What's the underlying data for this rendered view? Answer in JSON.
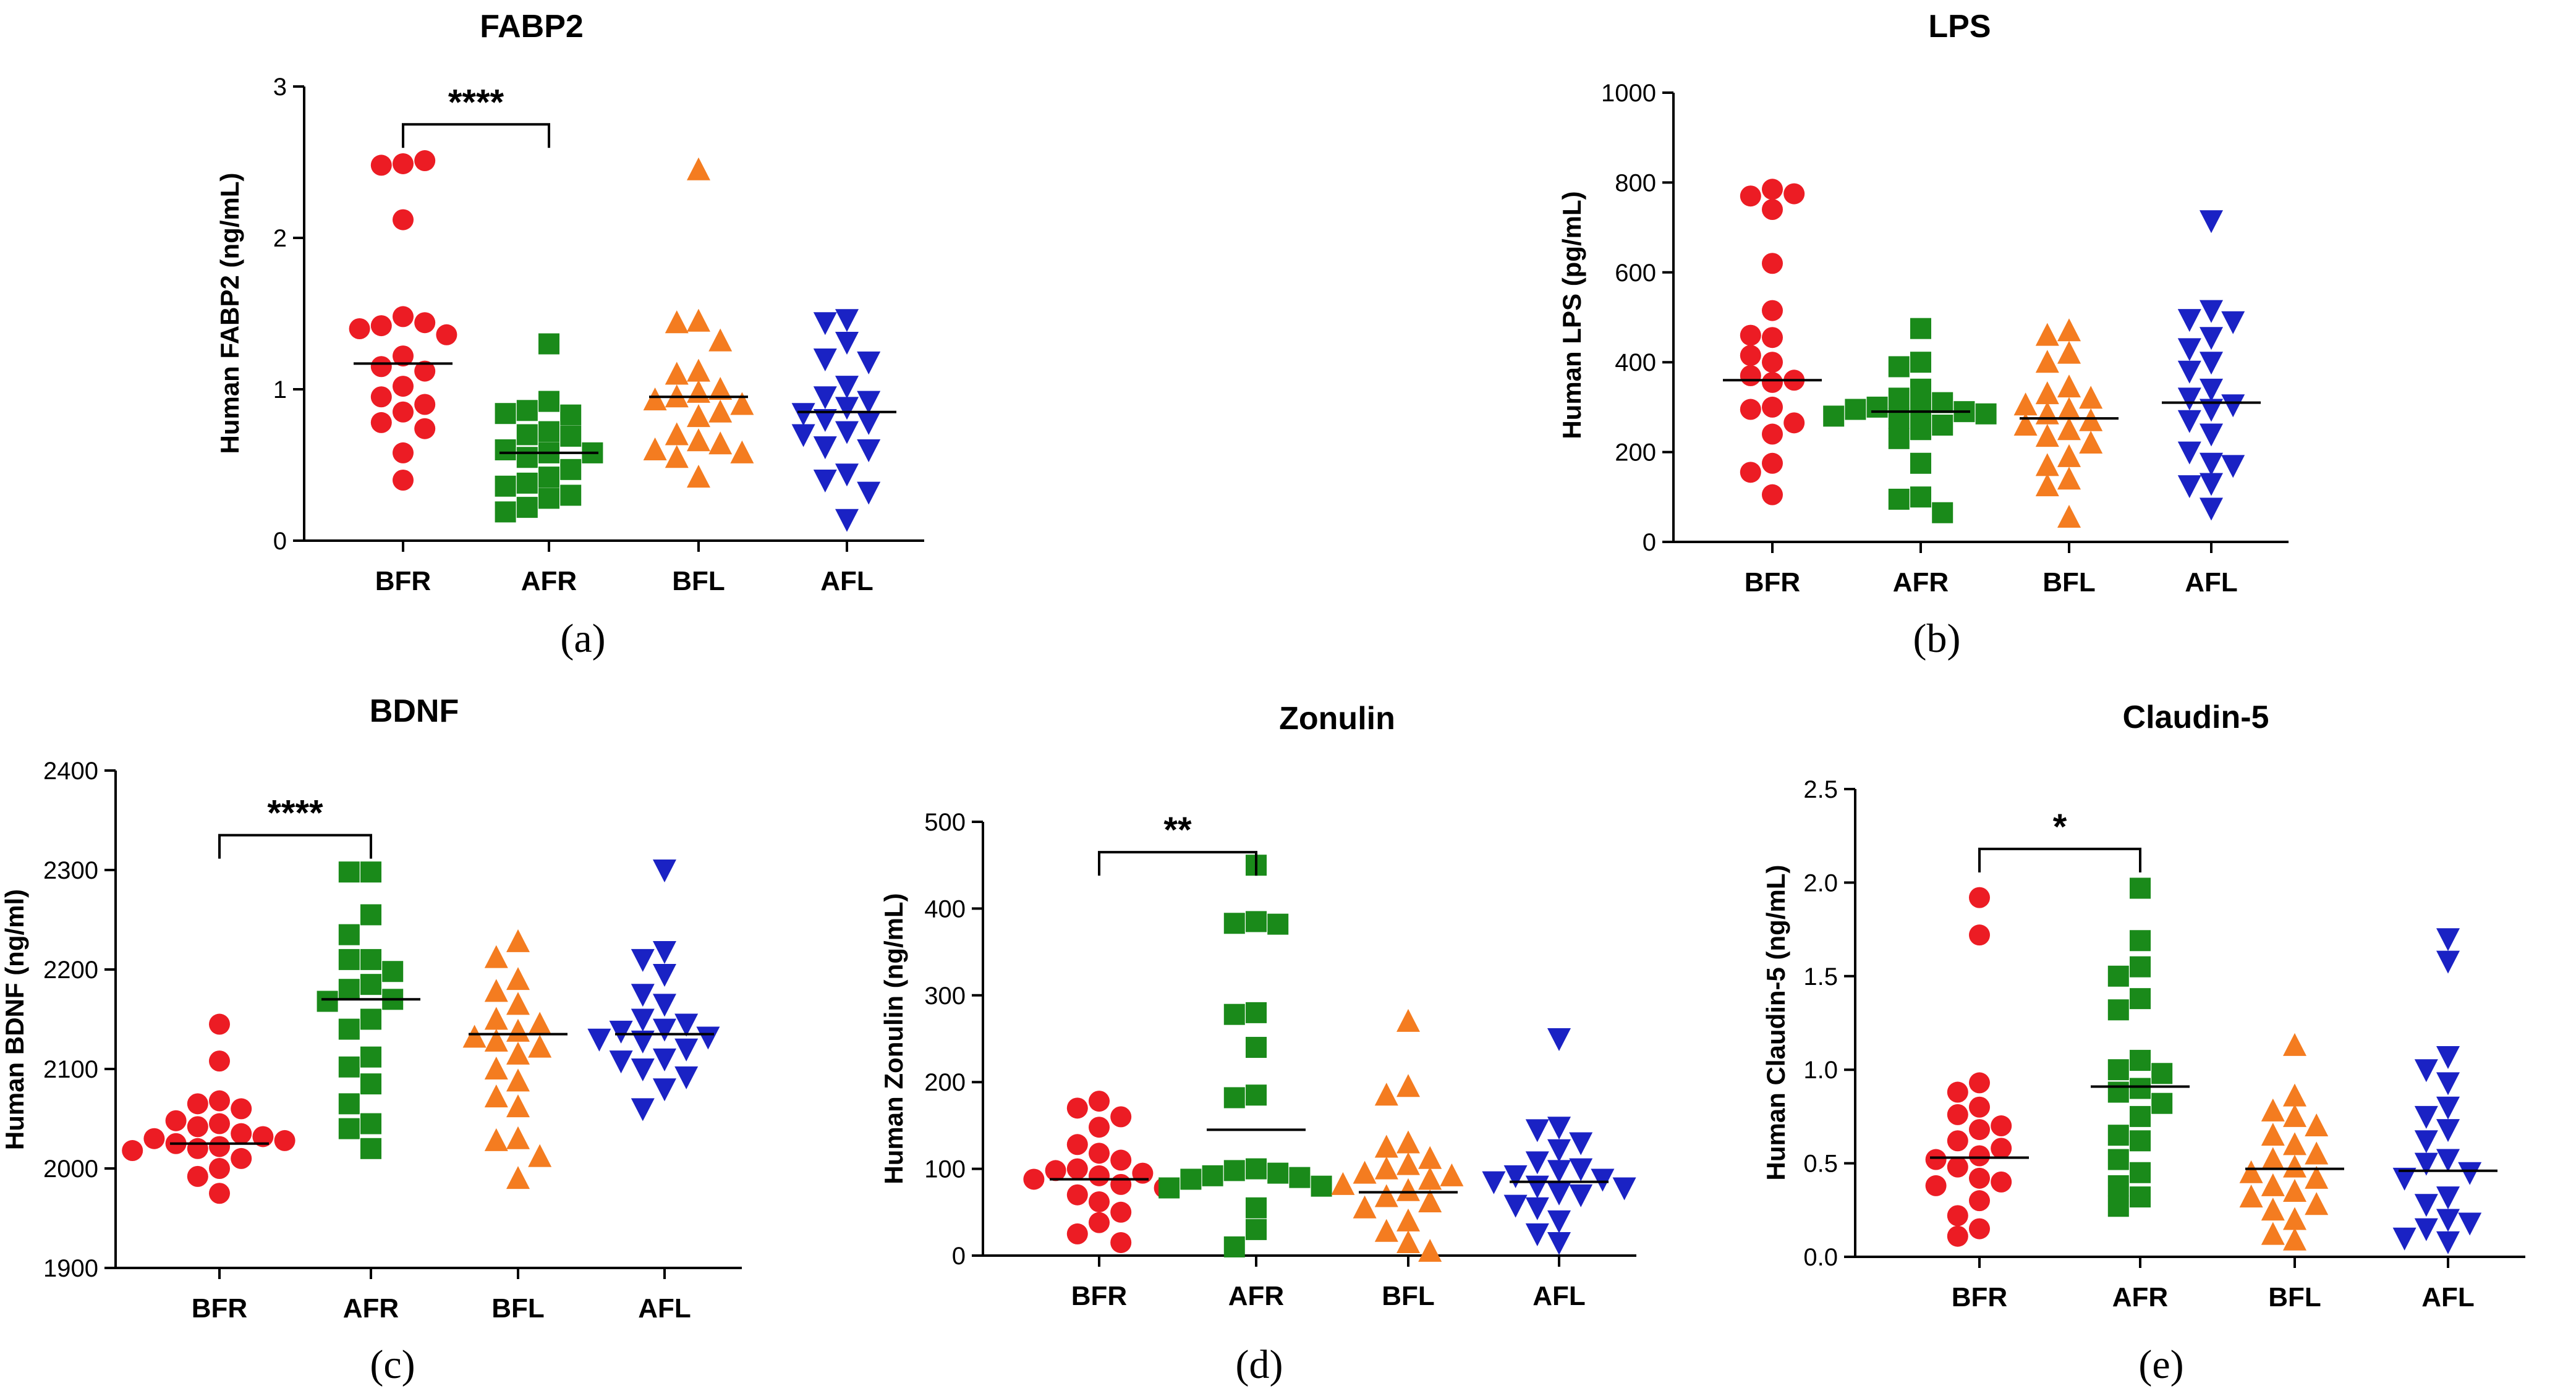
{
  "figure": {
    "category_labels": [
      "BFR",
      "AFR",
      "BFL",
      "AFL"
    ],
    "group_colors": {
      "BFR": "#ec1c24",
      "AFR": "#1a8a1a",
      "BFL": "#f47c20",
      "AFL": "#1a22c4"
    },
    "marker_shapes": {
      "BFR": "circle",
      "AFR": "square",
      "BFL": "triangle-up",
      "AFL": "triangle-down"
    }
  },
  "chart_data": [
    {
      "type": "scatter",
      "panel_label": "(a)",
      "title": "FABP2",
      "ylabel": "Human FABP2 (ng/mL)",
      "ylim": [
        0,
        3
      ],
      "yticks": [
        0,
        1,
        2,
        3
      ],
      "categories": [
        "BFR",
        "AFR",
        "BFL",
        "AFL"
      ],
      "means": [
        1.17,
        0.58,
        0.95,
        0.85
      ],
      "series": [
        {
          "name": "BFR",
          "values": [
            2.49,
            2.48,
            2.51,
            2.12,
            1.48,
            1.42,
            1.44,
            1.4,
            1.36,
            1.22,
            1.15,
            1.12,
            1.02,
            0.95,
            0.9,
            0.85,
            0.78,
            0.74,
            0.58,
            0.4
          ]
        },
        {
          "name": "AFR",
          "values": [
            1.3,
            0.92,
            0.86,
            0.83,
            0.84,
            0.72,
            0.7,
            0.69,
            0.6,
            0.58,
            0.58,
            0.55,
            0.47,
            0.42,
            0.38,
            0.36,
            0.3,
            0.28,
            0.22,
            0.19
          ]
        },
        {
          "name": "BFL",
          "values": [
            2.45,
            1.45,
            1.44,
            1.32,
            1.12,
            1.1,
            1.0,
            0.98,
            0.95,
            0.93,
            0.9,
            0.85,
            0.82,
            0.7,
            0.66,
            0.64,
            0.6,
            0.58,
            0.55,
            0.42
          ]
        },
        {
          "name": "AFL",
          "values": [
            1.46,
            1.44,
            1.31,
            1.2,
            1.18,
            1.02,
            0.95,
            0.92,
            0.88,
            0.84,
            0.8,
            0.78,
            0.72,
            0.7,
            0.62,
            0.6,
            0.44,
            0.4,
            0.32,
            0.14
          ]
        }
      ],
      "significance": [
        {
          "from": "BFR",
          "to": "AFR",
          "label": "****",
          "y": 2.75
        }
      ]
    },
    {
      "type": "scatter",
      "panel_label": "(b)",
      "title": "LPS",
      "ylabel": "Human LPS (pg/mL)",
      "ylim": [
        0,
        1000
      ],
      "yticks": [
        0,
        200,
        400,
        600,
        800,
        1000
      ],
      "categories": [
        "BFR",
        "AFR",
        "BFL",
        "AFL"
      ],
      "means": [
        360,
        290,
        275,
        310
      ],
      "series": [
        {
          "name": "BFR",
          "values": [
            785,
            770,
            775,
            740,
            620,
            515,
            455,
            460,
            415,
            400,
            370,
            360,
            355,
            300,
            295,
            240,
            265,
            175,
            155,
            105
          ]
        },
        {
          "name": "AFR",
          "values": [
            475,
            400,
            390,
            340,
            320,
            310,
            295,
            300,
            290,
            295,
            285,
            280,
            275,
            260,
            250,
            230,
            175,
            100,
            95,
            65
          ]
        },
        {
          "name": "BFL",
          "values": [
            470,
            460,
            420,
            400,
            345,
            330,
            320,
            305,
            295,
            285,
            270,
            260,
            250,
            235,
            220,
            190,
            170,
            140,
            125,
            55
          ]
        },
        {
          "name": "AFL",
          "values": [
            715,
            515,
            495,
            490,
            455,
            430,
            400,
            380,
            340,
            320,
            305,
            295,
            270,
            240,
            200,
            175,
            170,
            130,
            125,
            75
          ]
        }
      ],
      "significance": []
    },
    {
      "type": "scatter",
      "panel_label": "(c)",
      "title": "BDNF",
      "ylabel": "Human BDNF (ng/ml)",
      "ylim": [
        1900,
        2400
      ],
      "yticks": [
        1900,
        2000,
        2100,
        2200,
        2300,
        2400
      ],
      "categories": [
        "BFR",
        "AFR",
        "BFL",
        "AFL"
      ],
      "means": [
        2025,
        2170,
        2135,
        2135
      ],
      "series": [
        {
          "name": "BFR",
          "values": [
            2145,
            2108,
            2068,
            2065,
            2060,
            2048,
            2045,
            2042,
            2035,
            2032,
            2030,
            2028,
            2025,
            2022,
            2020,
            2018,
            2010,
            2000,
            1992,
            1975
          ]
        },
        {
          "name": "AFR",
          "values": [
            2298,
            2298,
            2255,
            2235,
            2210,
            2210,
            2198,
            2185,
            2180,
            2170,
            2168,
            2150,
            2140,
            2112,
            2102,
            2085,
            2065,
            2045,
            2040,
            2020
          ]
        },
        {
          "name": "BFL",
          "values": [
            2228,
            2212,
            2190,
            2178,
            2165,
            2150,
            2145,
            2138,
            2132,
            2128,
            2122,
            2115,
            2100,
            2088,
            2072,
            2062,
            2030,
            2028,
            2012,
            1990
          ]
        },
        {
          "name": "AFL",
          "values": [
            2300,
            2218,
            2210,
            2195,
            2175,
            2165,
            2150,
            2145,
            2140,
            2138,
            2132,
            2130,
            2128,
            2120,
            2110,
            2108,
            2100,
            2092,
            2080,
            2060
          ]
        }
      ],
      "significance": [
        {
          "from": "BFR",
          "to": "AFR",
          "label": "****",
          "y": 2335
        }
      ]
    },
    {
      "type": "scatter",
      "panel_label": "(d)",
      "title": "Zonulin",
      "ylabel": "Human Zonulin (ng/mL)",
      "ylim": [
        0,
        500
      ],
      "yticks": [
        0,
        100,
        200,
        300,
        400,
        500
      ],
      "categories": [
        "BFR",
        "AFR",
        "BFL",
        "AFL"
      ],
      "means": [
        88,
        145,
        73,
        85
      ],
      "series": [
        {
          "name": "BFR",
          "values": [
            178,
            170,
            160,
            148,
            128,
            118,
            110,
            100,
            98,
            95,
            92,
            88,
            82,
            78,
            70,
            62,
            50,
            38,
            25,
            15
          ]
        },
        {
          "name": "AFR",
          "values": [
            450,
            385,
            383,
            382,
            280,
            278,
            240,
            185,
            182,
            100,
            98,
            95,
            92,
            90,
            88,
            80,
            78,
            55,
            30,
            10
          ]
        },
        {
          "name": "BFL",
          "values": [
            270,
            195,
            185,
            130,
            125,
            112,
            105,
            100,
            95,
            92,
            88,
            82,
            75,
            68,
            62,
            55,
            40,
            28,
            15,
            5
          ]
        },
        {
          "name": "AFL",
          "values": [
            250,
            148,
            145,
            130,
            122,
            108,
            100,
            98,
            92,
            88,
            85,
            80,
            78,
            72,
            70,
            58,
            55,
            40,
            25,
            15
          ]
        }
      ],
      "significance": [
        {
          "from": "BFR",
          "to": "AFR",
          "label": "**",
          "y": 465
        }
      ]
    },
    {
      "type": "scatter",
      "panel_label": "(e)",
      "title": "Claudin-5",
      "ylabel": "Human Claudin-5 (ng/mL)",
      "ylim": [
        0,
        2.5
      ],
      "yticks": [
        0.0,
        0.5,
        1.0,
        1.5,
        2.0,
        2.5
      ],
      "categories": [
        "BFR",
        "AFR",
        "BFL",
        "AFL"
      ],
      "means": [
        0.53,
        0.91,
        0.47,
        0.46
      ],
      "series": [
        {
          "name": "BFR",
          "values": [
            1.92,
            1.72,
            0.93,
            0.88,
            0.8,
            0.76,
            0.7,
            0.68,
            0.62,
            0.58,
            0.54,
            0.52,
            0.48,
            0.42,
            0.4,
            0.38,
            0.3,
            0.22,
            0.15,
            0.11
          ]
        },
        {
          "name": "AFR",
          "values": [
            1.97,
            1.69,
            1.55,
            1.5,
            1.38,
            1.32,
            1.05,
            1.0,
            0.98,
            0.9,
            0.88,
            0.82,
            0.75,
            0.65,
            0.62,
            0.52,
            0.45,
            0.38,
            0.32,
            0.27
          ]
        },
        {
          "name": "BFL",
          "values": [
            1.13,
            0.86,
            0.78,
            0.75,
            0.7,
            0.65,
            0.6,
            0.55,
            0.52,
            0.48,
            0.45,
            0.42,
            0.38,
            0.35,
            0.32,
            0.28,
            0.25,
            0.2,
            0.12,
            0.09
          ]
        },
        {
          "name": "AFL",
          "values": [
            1.7,
            1.58,
            1.07,
            1.0,
            0.93,
            0.8,
            0.75,
            0.68,
            0.62,
            0.52,
            0.5,
            0.45,
            0.42,
            0.32,
            0.28,
            0.2,
            0.18,
            0.15,
            0.1,
            0.08
          ]
        }
      ],
      "significance": [
        {
          "from": "BFR",
          "to": "AFR",
          "label": "*",
          "y": 2.18
        }
      ]
    }
  ]
}
